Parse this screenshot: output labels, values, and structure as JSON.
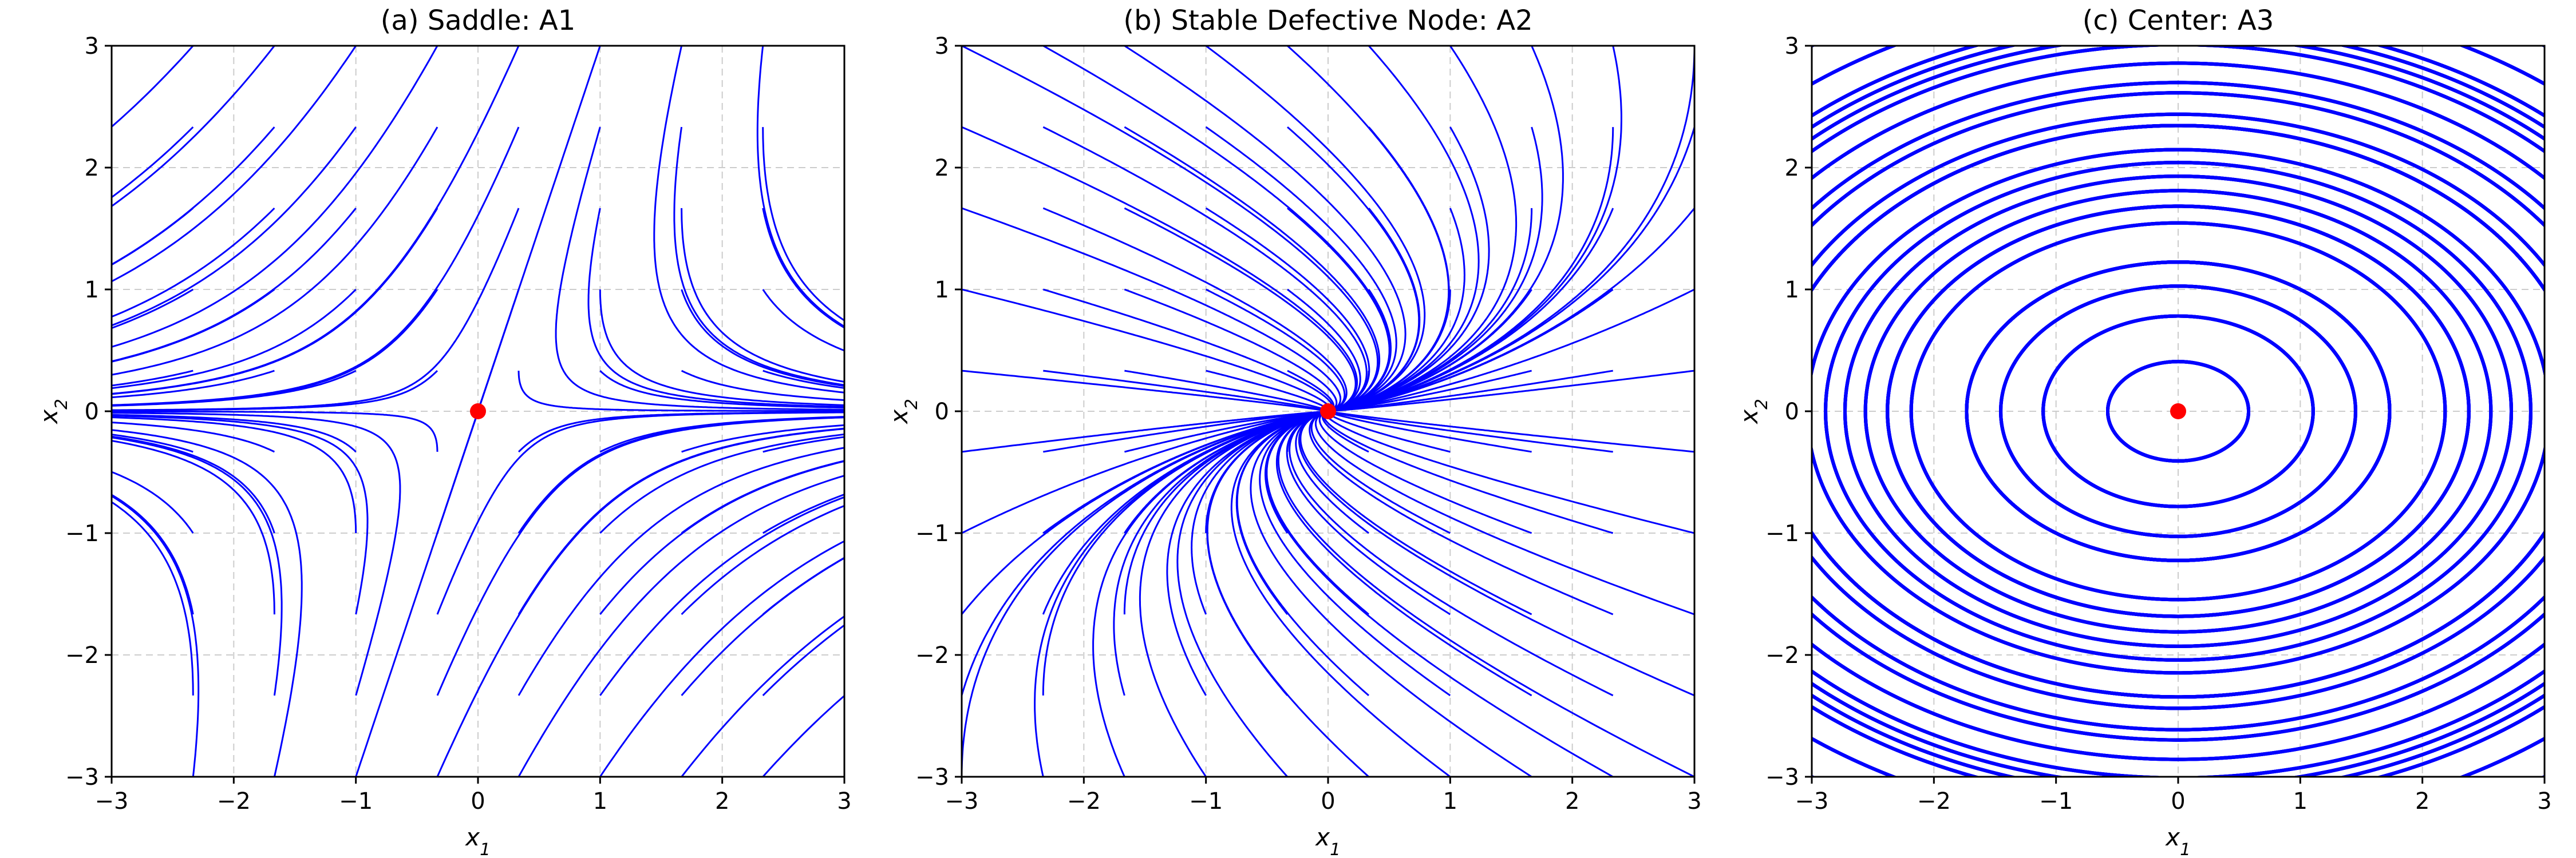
{
  "chart_data": [
    {
      "type": "line",
      "subtype": "phase-portrait",
      "title": "(a) Saddle: A1",
      "xlabel": "x1",
      "ylabel": "x2",
      "xlim": [
        -3,
        3
      ],
      "ylim": [
        -3,
        3
      ],
      "xticks": [
        -3,
        -2,
        -1,
        0,
        1,
        2,
        3
      ],
      "yticks": [
        -3,
        -2,
        -1,
        0,
        1,
        2,
        3
      ],
      "grid": true,
      "series": [
        {
          "system": [
            [
              1,
              -1
            ],
            [
              0,
              -2
            ]
          ]
        }
      ],
      "equilibrium": [
        0,
        0
      ],
      "colors": {
        "trajectory": "#0000ff",
        "equilibrium": "#ff0000",
        "grid": "#cccccc"
      }
    },
    {
      "type": "line",
      "subtype": "phase-portrait",
      "title": "(b) Stable Defective Node: A2",
      "xlabel": "x1",
      "ylabel": "x2",
      "xlim": [
        -3,
        3
      ],
      "ylim": [
        -3,
        3
      ],
      "xticks": [
        -3,
        -2,
        -1,
        0,
        1,
        2,
        3
      ],
      "yticks": [
        -3,
        -2,
        -1,
        0,
        1,
        2,
        3
      ],
      "grid": true,
      "series": [
        {
          "system": [
            [
              -1,
              1
            ],
            [
              0,
              -1
            ]
          ]
        }
      ],
      "equilibrium": [
        0,
        0
      ],
      "colors": {
        "trajectory": "#0000ff",
        "equilibrium": "#ff0000",
        "grid": "#cccccc"
      }
    },
    {
      "type": "line",
      "subtype": "phase-portrait",
      "title": "(c) Center: A3",
      "xlabel": "x1",
      "ylabel": "x2",
      "xlim": [
        -3,
        3
      ],
      "ylim": [
        -3,
        3
      ],
      "xticks": [
        -3,
        -2,
        -1,
        0,
        1,
        2,
        3
      ],
      "yticks": [
        -3,
        -2,
        -1,
        0,
        1,
        2,
        3
      ],
      "grid": true,
      "series": [
        {
          "system": [
            [
              0,
              2
            ],
            [
              -1,
              0
            ]
          ]
        }
      ],
      "equilibrium": [
        0,
        0
      ],
      "colors": {
        "trajectory": "#0000ff",
        "equilibrium": "#ff0000",
        "grid": "#cccccc"
      }
    }
  ]
}
